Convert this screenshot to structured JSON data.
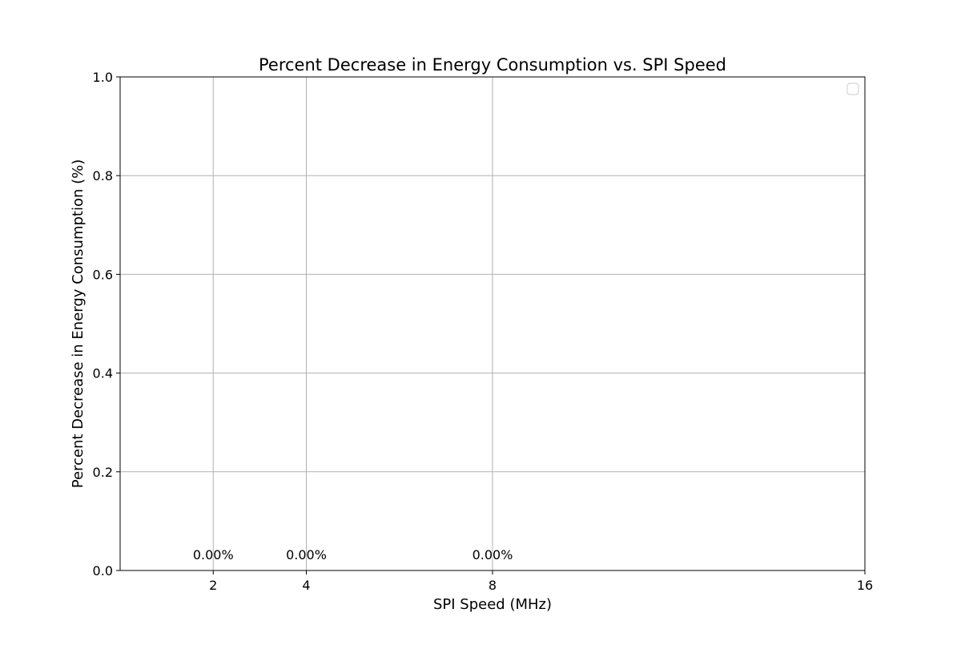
{
  "chart_data": {
    "type": "line",
    "title": "Percent Decrease in Energy Consumption vs. SPI Speed",
    "xlabel": "SPI Speed (MHz)",
    "ylabel": "Percent Decrease in Energy Consumption (%)",
    "x": [
      2,
      4,
      8
    ],
    "x_ticks": [
      2,
      4,
      8,
      16
    ],
    "xlim": [
      0,
      16
    ],
    "y_ticks": [
      0.0,
      0.2,
      0.4,
      0.6,
      0.8,
      1.0
    ],
    "y_tick_labels": [
      "0.0",
      "0.2",
      "0.4",
      "0.6",
      "0.8",
      "1.0"
    ],
    "ylim": [
      0,
      1
    ],
    "series": [
      {
        "values": [
          0,
          0,
          0
        ]
      }
    ],
    "data_labels": [
      "0.00%",
      "0.00%",
      "0.00%"
    ],
    "grid": true,
    "legend": {
      "placement": "top-right",
      "entries": []
    }
  },
  "colors": {
    "grid": "#b0b0b0",
    "axis": "#000000",
    "background": "#ffffff"
  }
}
